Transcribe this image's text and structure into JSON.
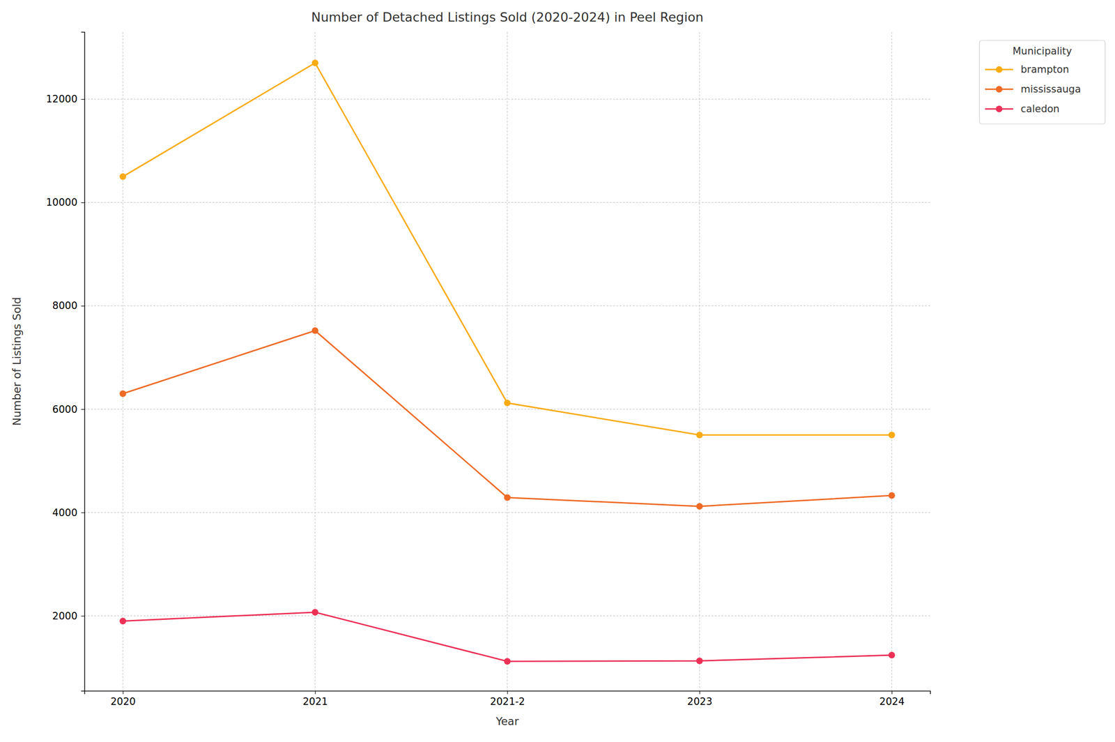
{
  "chart_data": {
    "type": "line",
    "title": "Number of Detached Listings Sold (2020-2024) in Peel Region",
    "x_label": "Year",
    "y_label": "Number of Listings Sold",
    "legend_title": "Municipality",
    "categories": [
      "2020",
      "2021",
      "2021-2",
      "2023",
      "2024"
    ],
    "series": [
      {
        "name": "brampton",
        "color": "#f9ab14",
        "marker": "circle",
        "values": [
          10500,
          12700,
          6120,
          5500,
          5500
        ]
      },
      {
        "name": "mississauga",
        "color": "#ee6a25",
        "marker": "circle",
        "values": [
          6300,
          7520,
          4290,
          4120,
          4330
        ]
      },
      {
        "name": "caledon",
        "color": "#ec3157",
        "marker": "circle",
        "values": [
          1900,
          2070,
          1120,
          1130,
          1240
        ]
      }
    ],
    "ylim": [
      550,
      13300
    ],
    "yticks": [
      2000,
      4000,
      6000,
      8000,
      10000,
      12000
    ],
    "grid": true,
    "legend": "right"
  }
}
